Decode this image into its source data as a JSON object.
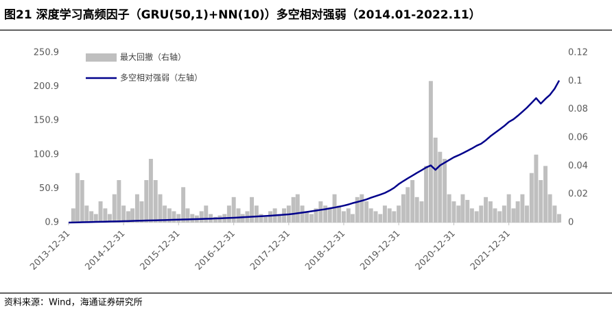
{
  "chart_data": {
    "type": "bar-line",
    "title": "图21 深度学习高频因子（GRU(50,1)+NN(10)）多空相对强弱（2014.01-2022.11）",
    "source": "资料来源：Wind，海通证券研究所",
    "x": [
      "2013-12-31",
      "2014-01-31",
      "2014-02-28",
      "2014-03-31",
      "2014-04-30",
      "2014-05-31",
      "2014-06-30",
      "2014-07-31",
      "2014-08-31",
      "2014-09-30",
      "2014-10-31",
      "2014-11-30",
      "2014-12-31",
      "2015-01-31",
      "2015-02-28",
      "2015-03-31",
      "2015-04-30",
      "2015-05-31",
      "2015-06-30",
      "2015-07-31",
      "2015-08-31",
      "2015-09-30",
      "2015-10-31",
      "2015-11-30",
      "2015-12-31",
      "2016-01-31",
      "2016-02-29",
      "2016-03-31",
      "2016-04-30",
      "2016-05-31",
      "2016-06-30",
      "2016-07-31",
      "2016-08-31",
      "2016-09-30",
      "2016-10-31",
      "2016-11-30",
      "2016-12-31",
      "2017-01-31",
      "2017-02-28",
      "2017-03-31",
      "2017-04-30",
      "2017-05-31",
      "2017-06-30",
      "2017-07-31",
      "2017-08-31",
      "2017-09-30",
      "2017-10-31",
      "2017-11-30",
      "2017-12-31",
      "2018-01-31",
      "2018-02-28",
      "2018-03-31",
      "2018-04-30",
      "2018-05-31",
      "2018-06-30",
      "2018-07-31",
      "2018-08-31",
      "2018-09-30",
      "2018-10-31",
      "2018-11-30",
      "2018-12-31",
      "2019-01-31",
      "2019-02-28",
      "2019-03-31",
      "2019-04-30",
      "2019-05-31",
      "2019-06-30",
      "2019-07-31",
      "2019-08-31",
      "2019-09-30",
      "2019-10-31",
      "2019-11-30",
      "2019-12-31",
      "2020-01-31",
      "2020-02-29",
      "2020-03-31",
      "2020-04-30",
      "2020-05-31",
      "2020-06-30",
      "2020-07-31",
      "2020-08-31",
      "2020-09-30",
      "2020-10-31",
      "2020-11-30",
      "2020-12-31",
      "2021-01-31",
      "2021-02-28",
      "2021-03-31",
      "2021-04-30",
      "2021-05-31",
      "2021-06-30",
      "2021-07-31",
      "2021-08-31",
      "2021-09-30",
      "2021-10-31",
      "2021-11-30",
      "2021-12-31",
      "2022-01-31",
      "2022-02-28",
      "2022-03-31",
      "2022-04-30",
      "2022-05-31",
      "2022-06-30",
      "2022-07-31",
      "2022-08-31",
      "2022-09-30",
      "2022-10-31",
      "2022-11-30"
    ],
    "xlim": [
      "2013-12-31",
      "2022-11-30"
    ],
    "xticks": [
      "2013-12-31",
      "2014-12-31",
      "2015-12-31",
      "2016-12-31",
      "2017-12-31",
      "2018-12-31",
      "2019-12-31",
      "2020-12-31",
      "2021-12-31"
    ],
    "ylim": [
      0.9,
      250.9
    ],
    "yticks": [
      0.9,
      50.9,
      100.9,
      150.9,
      200.9,
      250.9
    ],
    "y2lim": [
      0,
      0.12
    ],
    "y2ticks": [
      0,
      0.02,
      0.04,
      0.06,
      0.08,
      0.1,
      0.12
    ],
    "series": [
      {
        "name": "最大回撤（右轴）",
        "type": "bar",
        "axis": "y2",
        "color": "#bfbfbf",
        "values": [
          0,
          0.01,
          0.035,
          0.03,
          0.012,
          0.008,
          0.006,
          0.015,
          0.01,
          0.006,
          0.02,
          0.03,
          0.012,
          0.008,
          0.01,
          0.02,
          0.015,
          0.03,
          0.045,
          0.03,
          0.02,
          0.012,
          0.01,
          0.008,
          0.006,
          0.025,
          0.01,
          0.006,
          0.005,
          0.008,
          0.012,
          0.006,
          0.004,
          0.005,
          0.006,
          0.012,
          0.018,
          0.01,
          0.006,
          0.008,
          0.018,
          0.012,
          0.006,
          0.004,
          0.008,
          0.01,
          0.006,
          0.01,
          0.012,
          0.018,
          0.02,
          0.012,
          0.008,
          0.006,
          0.01,
          0.015,
          0.012,
          0.01,
          0.02,
          0.012,
          0.008,
          0.01,
          0.006,
          0.018,
          0.02,
          0.015,
          0.01,
          0.008,
          0.006,
          0.012,
          0.01,
          0.008,
          0.012,
          0.02,
          0.025,
          0.03,
          0.018,
          0.015,
          0.04,
          0.1,
          0.06,
          0.05,
          0.045,
          0.02,
          0.015,
          0.012,
          0.02,
          0.016,
          0.01,
          0.008,
          0.012,
          0.018,
          0.015,
          0.01,
          0.008,
          0.012,
          0.02,
          0.01,
          0.015,
          0.02,
          0.012,
          0.035,
          0.048,
          0.03,
          0.04,
          0.02,
          0.012,
          0.006
        ]
      },
      {
        "name": "多空相对强弱（左轴）",
        "type": "line",
        "axis": "y",
        "color": "#00008b",
        "values": [
          0.9,
          1.0,
          1.2,
          1.4,
          1.5,
          1.7,
          1.9,
          2.0,
          2.2,
          2.4,
          2.5,
          2.7,
          2.9,
          3.1,
          3.3,
          3.5,
          3.7,
          3.9,
          4.0,
          4.2,
          4.4,
          4.6,
          4.8,
          5.0,
          5.2,
          5.4,
          5.6,
          5.8,
          6.0,
          6.2,
          6.4,
          6.6,
          6.9,
          7.1,
          7.4,
          7.7,
          8.0,
          8.3,
          8.7,
          9.1,
          9.5,
          9.8,
          10.2,
          10.6,
          11.0,
          11.5,
          12.0,
          12.5,
          13.0,
          13.8,
          14.6,
          15.5,
          16.5,
          17.5,
          18.5,
          19.6,
          20.6,
          21.8,
          23.0,
          24.3,
          25.8,
          27.5,
          29.5,
          31.2,
          33.0,
          35.0,
          37.5,
          39.8,
          42.0,
          44.5,
          48.0,
          52.0,
          57.5,
          62.0,
          66.0,
          70.0,
          74.0,
          78.0,
          82.0,
          85.0,
          78.5,
          85.0,
          89.0,
          93.0,
          97.0,
          100.0,
          103.0,
          106.5,
          110.0,
          114.0,
          117.0,
          122.0,
          128.0,
          133.0,
          138.0,
          143.0,
          149.0,
          153.0,
          158.0,
          164.0,
          170.0,
          177.0,
          184.0,
          176.0,
          183.0,
          189.0,
          198.0,
          210.0
        ]
      }
    ],
    "legend": "upper left"
  }
}
